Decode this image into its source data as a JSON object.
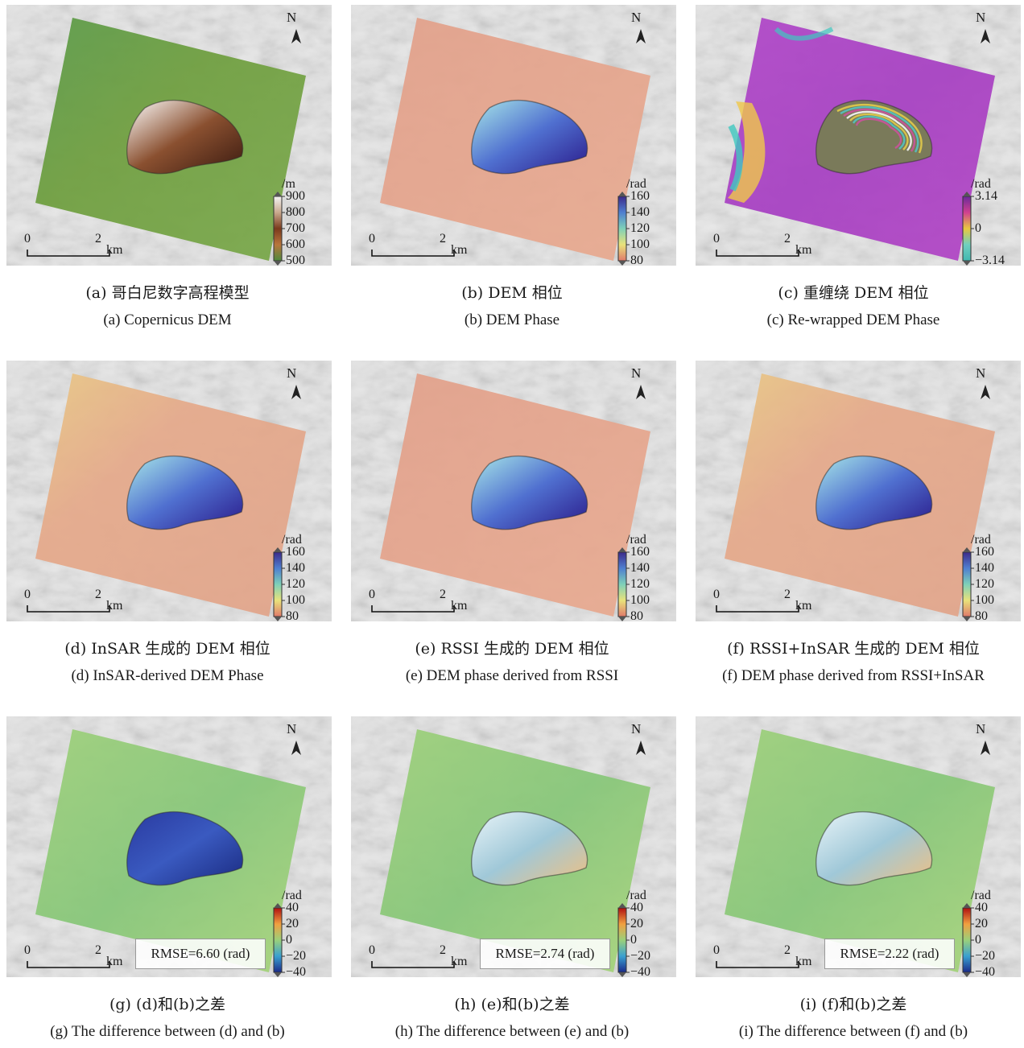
{
  "north_label": "N",
  "scale": {
    "zero": "0",
    "two": "2",
    "unit": "km"
  },
  "panels": [
    {
      "id": "a",
      "unit": "/m",
      "ticks": [
        "900",
        "800",
        "700",
        "600",
        "500"
      ],
      "colormap": "dem",
      "rmse": null,
      "caption_zh": "(a) 哥白尼数字高程模型",
      "caption_en": "(a) Copernicus DEM"
    },
    {
      "id": "b",
      "unit": "/rad",
      "ticks": [
        "160",
        "140",
        "120",
        "100",
        "80"
      ],
      "colormap": "phase",
      "rmse": null,
      "caption_zh": "(b) DEM 相位",
      "caption_en": "(b) DEM Phase"
    },
    {
      "id": "c",
      "unit": "/rad",
      "ticks": [
        "3.14",
        "0",
        "−3.14"
      ],
      "colormap": "wrapped",
      "rmse": null,
      "caption_zh": "(c) 重缠绕 DEM 相位",
      "caption_en": "(c) Re-wrapped DEM Phase"
    },
    {
      "id": "d",
      "unit": "/rad",
      "ticks": [
        "160",
        "140",
        "120",
        "100",
        "80"
      ],
      "colormap": "phase",
      "rmse": null,
      "caption_zh": "(d) InSAR 生成的 DEM 相位",
      "caption_en": "(d) InSAR-derived DEM Phase"
    },
    {
      "id": "e",
      "unit": "/rad",
      "ticks": [
        "160",
        "140",
        "120",
        "100",
        "80"
      ],
      "colormap": "phase",
      "rmse": null,
      "caption_zh": "(e) RSSI 生成的 DEM 相位",
      "caption_en": "(e) DEM phase derived from RSSI"
    },
    {
      "id": "f",
      "unit": "/rad",
      "ticks": [
        "160",
        "140",
        "120",
        "100",
        "80"
      ],
      "colormap": "phase",
      "rmse": null,
      "caption_zh": "(f) RSSI+InSAR 生成的 DEM 相位",
      "caption_en": "(f) DEM phase derived from RSSI+InSAR"
    },
    {
      "id": "g",
      "unit": "/rad",
      "ticks": [
        "40",
        "20",
        "0",
        "−20",
        "−40"
      ],
      "colormap": "diff",
      "rmse": "RMSE=6.60 (rad)",
      "caption_zh": "(g) (d)和(b)之差",
      "caption_en": "(g) The difference between (d) and (b)"
    },
    {
      "id": "h",
      "unit": "/rad",
      "ticks": [
        "40",
        "20",
        "0",
        "−20",
        "−40"
      ],
      "colormap": "diff",
      "rmse": "RMSE=2.74 (rad)",
      "caption_zh": "(h) (e)和(b)之差",
      "caption_en": "(h) The difference between (e) and (b)"
    },
    {
      "id": "i",
      "unit": "/rad",
      "ticks": [
        "40",
        "20",
        "0",
        "−20",
        "−40"
      ],
      "colormap": "diff",
      "rmse": "RMSE=2.22 (rad)",
      "caption_zh": "(i) (f)和(b)之差",
      "caption_en": "(i) The difference between (f) and (b)"
    }
  ]
}
